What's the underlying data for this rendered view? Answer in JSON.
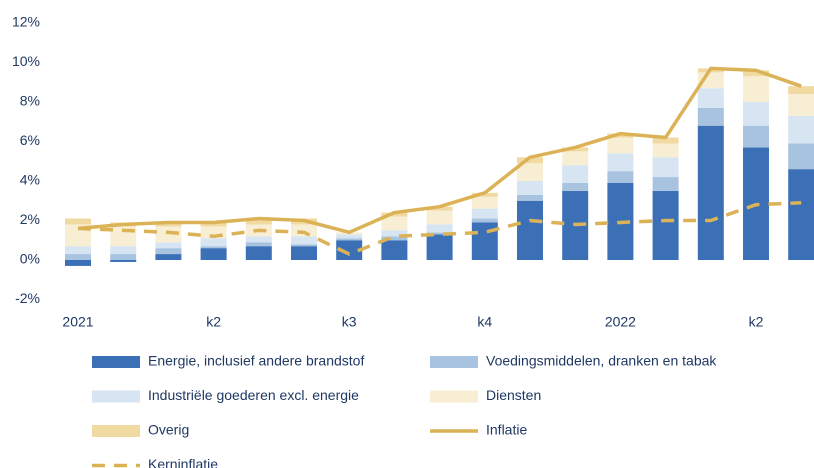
{
  "chart_data": {
    "type": "bar",
    "stacked": true,
    "categories": [
      "2021",
      null,
      null,
      "k2",
      null,
      null,
      "k3",
      null,
      null,
      "k4",
      null,
      null,
      "2022",
      null,
      null,
      "k2",
      null
    ],
    "ylim": [
      -2,
      12
    ],
    "yticks": [
      {
        "value": -2,
        "label": "-2%"
      },
      {
        "value": 0,
        "label": "0%"
      },
      {
        "value": 2,
        "label": "2%"
      },
      {
        "value": 4,
        "label": "4%"
      },
      {
        "value": 6,
        "label": "6%"
      },
      {
        "value": 8,
        "label": "8%"
      },
      {
        "value": 10,
        "label": "10%"
      },
      {
        "value": 12,
        "label": "12%"
      }
    ],
    "grid": false,
    "series": [
      {
        "name": "Energie, inclusief andere brandstof",
        "color": "#3b6fb6",
        "type": "bar",
        "values": [
          -0.3,
          -0.1,
          0.3,
          0.6,
          0.7,
          0.7,
          1.0,
          1.0,
          1.3,
          1.9,
          3.0,
          3.5,
          3.9,
          3.5,
          6.8,
          5.7,
          4.6
        ]
      },
      {
        "name": "Voedingsmiddelen, dranken en tabak",
        "color": "#a8c3e0",
        "type": "bar",
        "values": [
          0.3,
          0.3,
          0.3,
          0.1,
          0.2,
          0.1,
          0.1,
          0.2,
          0.1,
          0.2,
          0.3,
          0.4,
          0.6,
          0.7,
          0.9,
          1.1,
          1.3
        ]
      },
      {
        "name": "Industriële goederen excl. energie",
        "color": "#d7e5f3",
        "type": "bar",
        "values": [
          0.4,
          0.4,
          0.3,
          0.4,
          0.3,
          0.4,
          0.2,
          0.3,
          0.4,
          0.5,
          0.7,
          0.9,
          0.9,
          1.0,
          1.0,
          1.2,
          1.4
        ]
      },
      {
        "name": "Diensten",
        "color": "#f8eed3",
        "type": "bar",
        "values": [
          1.1,
          1.0,
          0.8,
          0.6,
          0.6,
          0.6,
          0.1,
          0.7,
          0.7,
          0.6,
          0.9,
          0.7,
          0.8,
          0.7,
          0.8,
          1.3,
          1.1
        ]
      },
      {
        "name": "Overig",
        "color": "#f1daa2",
        "type": "bar",
        "values": [
          0.3,
          0.2,
          0.2,
          0.2,
          0.3,
          0.3,
          0.0,
          0.2,
          0.2,
          0.2,
          0.3,
          0.2,
          0.2,
          0.3,
          0.2,
          0.3,
          0.4
        ]
      },
      {
        "name": "Inflatie",
        "color": "#dcb257",
        "type": "line",
        "style": "solid",
        "values": [
          1.6,
          1.8,
          1.9,
          1.9,
          2.1,
          2.0,
          1.4,
          2.4,
          2.7,
          3.4,
          5.2,
          5.7,
          6.4,
          6.2,
          9.7,
          9.6,
          8.8
        ]
      },
      {
        "name": "Kerninflatie",
        "color": "#dcb257",
        "type": "line",
        "style": "dashed",
        "values": [
          1.6,
          1.5,
          1.4,
          1.2,
          1.5,
          1.4,
          0.3,
          1.2,
          1.3,
          1.4,
          2.0,
          1.8,
          1.9,
          2.0,
          2.0,
          2.8,
          2.9
        ]
      }
    ]
  }
}
